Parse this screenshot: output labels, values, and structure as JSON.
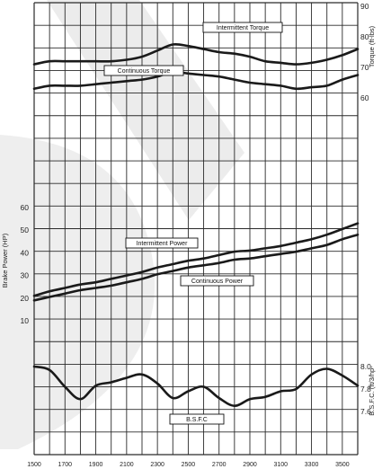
{
  "chart_data": {
    "type": "line",
    "x": [
      1500,
      1600,
      1700,
      1800,
      1900,
      2000,
      2100,
      2200,
      2300,
      2400,
      2500,
      2600,
      2700,
      2800,
      2900,
      3000,
      3100,
      3200,
      3300,
      3400,
      3500,
      3600
    ],
    "x_ticks": [
      "1500",
      "1700",
      "1900",
      "2100",
      "2300",
      "2500",
      "2700",
      "2900",
      "3100",
      "3300",
      "3500"
    ],
    "xlim": [
      1500,
      3600
    ],
    "panels": {
      "torque": {
        "ylabel": "Torque (ft-lbs)",
        "ticks": [
          "60",
          "70",
          "80",
          "90"
        ],
        "ylim": [
          60,
          90
        ],
        "series": [
          {
            "name": "Intermittent Torque",
            "values": [
              71,
              72,
              72,
              72,
              72,
              72,
              72.5,
              73.5,
              75.5,
              77.5,
              77,
              76,
              75,
              74.5,
              73.5,
              72,
              71.5,
              71,
              71.5,
              72.5,
              74,
              76
            ]
          },
          {
            "name": "Continuous Torque",
            "values": [
              63,
              64,
              64,
              64,
              64.5,
              65,
              65.5,
              66,
              67,
              68.5,
              68,
              67.5,
              67,
              66,
              65,
              64.5,
              64,
              63,
              63.5,
              64,
              66,
              67.5
            ]
          }
        ]
      },
      "power": {
        "ylabel": "Brake Power (HP)",
        "ticks": [
          "10",
          "20",
          "30",
          "40",
          "50",
          "60"
        ],
        "ylim": [
          10,
          60
        ],
        "series": [
          {
            "name": "Intermittent Power",
            "values": [
              21,
              23,
              24.5,
              26,
              27,
              28.5,
              30,
              31.5,
              33.5,
              35,
              36.5,
              37.5,
              39,
              40.5,
              41,
              42,
              43,
              44.5,
              46,
              48,
              50.5,
              53
            ]
          },
          {
            "name": "Continuous Power",
            "values": [
              19,
              20.5,
              22,
              23.5,
              24.5,
              25.5,
              27,
              28.5,
              30.5,
              32,
              33.5,
              34.5,
              35.5,
              37,
              37.5,
              38.5,
              39.5,
              40.5,
              42,
              43.5,
              46,
              48
            ]
          }
        ]
      },
      "bsfc": {
        "ylabel": "B.S.F.C. (ft/3/hp-",
        "ticks": [
          "7.6",
          "7.8",
          "8.0"
        ],
        "ylim": [
          7.5,
          8.05
        ],
        "series": [
          {
            "name": "B.S.F.C",
            "values": [
              8.0,
              7.97,
              7.82,
              7.71,
              7.83,
              7.86,
              7.9,
              7.93,
              7.85,
              7.72,
              7.78,
              7.82,
              7.72,
              7.65,
              7.71,
              7.73,
              7.78,
              7.8,
              7.93,
              7.98,
              7.92,
              7.83
            ]
          }
        ]
      }
    },
    "grid": true
  },
  "colors": {
    "line": "#1a1a1a",
    "grid": "#2a2a2a",
    "watermark": "#d9d9d9"
  }
}
